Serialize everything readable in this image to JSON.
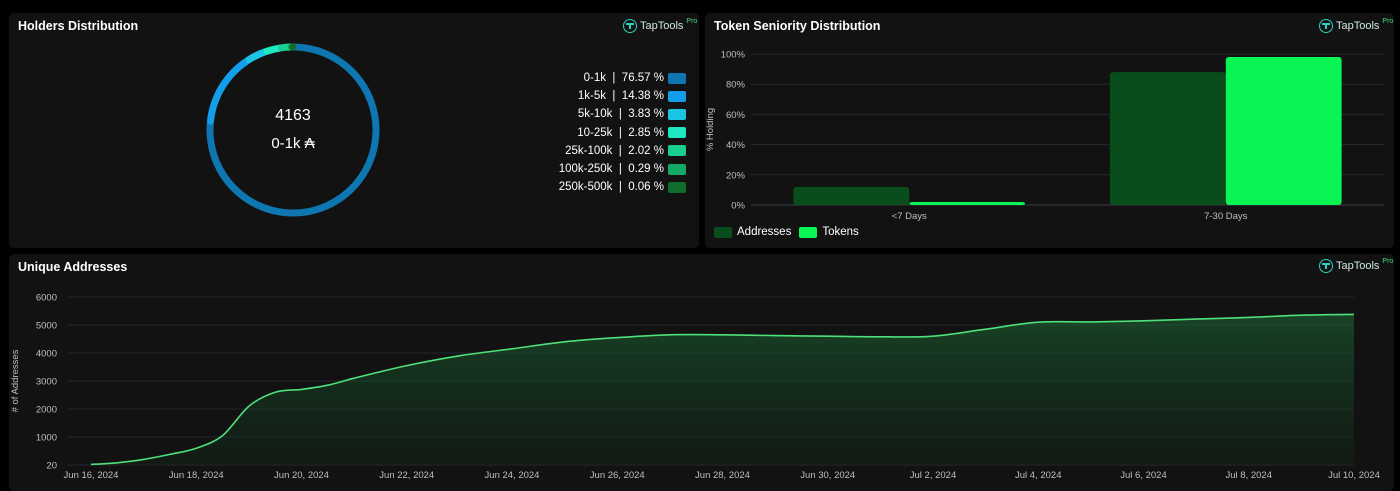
{
  "brand": {
    "name": "TapTools",
    "badge": "Pro"
  },
  "holders": {
    "title": "Holders Distribution",
    "center_value": "4163",
    "center_label": "0-1k ₳"
  },
  "seniority": {
    "title": "Token Seniority Distribution"
  },
  "unique": {
    "title": "Unique Addresses"
  },
  "chart_data": [
    {
      "type": "pie",
      "title": "Holders Distribution",
      "categories": [
        "0-1k",
        "1k-5k",
        "5k-10k",
        "10-25k",
        "25k-100k",
        "100k-250k",
        "250k-500k"
      ],
      "values": [
        76.57,
        14.38,
        3.83,
        2.85,
        2.02,
        0.29,
        0.06
      ],
      "value_labels": [
        "76.57 %",
        "14.38 %",
        "3.83 %",
        "2.85 %",
        "2.02 %",
        "0.29 %",
        "0.06 %"
      ],
      "colors": [
        "#0e76b0",
        "#129ee8",
        "#1cc4e4",
        "#1ee8c2",
        "#18cf8e",
        "#13a866",
        "#0f6e2c"
      ],
      "legend_position": "right"
    },
    {
      "type": "bar",
      "title": "Token Seniority Distribution",
      "categories": [
        "<7 Days",
        "7-30 Days"
      ],
      "series": [
        {
          "name": "Addresses",
          "values": [
            12,
            88
          ],
          "color": "#0a4d1c"
        },
        {
          "name": "Tokens",
          "values": [
            2,
            98
          ],
          "color": "#0af554"
        }
      ],
      "ylabel": "% Holding",
      "ylim": [
        0,
        100
      ],
      "yticks": [
        "0%",
        "20%",
        "40%",
        "60%",
        "80%",
        "100%"
      ],
      "legend_position": "bottom-left",
      "grid": true
    },
    {
      "type": "area",
      "title": "Unique Addresses",
      "ylabel": "# of Addresses",
      "ylim": [
        20,
        6000
      ],
      "yticks": [
        "20",
        "1000",
        "2000",
        "3000",
        "4000",
        "5000",
        "6000"
      ],
      "xticks": [
        "Jun 16, 2024",
        "Jun 18, 2024",
        "Jun 20, 2024",
        "Jun 22, 2024",
        "Jun 24, 2024",
        "Jun 26, 2024",
        "Jun 28, 2024",
        "Jun 30, 2024",
        "Jul 2, 2024",
        "Jul 4, 2024",
        "Jul 6, 2024",
        "Jul 8, 2024",
        "Jul 10, 2024"
      ],
      "x": [
        "2024-06-16",
        "2024-06-16T12",
        "2024-06-17",
        "2024-06-17T12",
        "2024-06-18",
        "2024-06-18T12",
        "2024-06-19",
        "2024-06-19T12",
        "2024-06-20",
        "2024-06-20T12",
        "2024-06-21",
        "2024-06-22",
        "2024-06-23",
        "2024-06-24",
        "2024-06-25",
        "2024-06-26",
        "2024-06-27",
        "2024-06-28",
        "2024-06-29",
        "2024-06-30",
        "2024-07-01",
        "2024-07-02",
        "2024-07-03",
        "2024-07-04",
        "2024-07-05",
        "2024-07-06",
        "2024-07-07",
        "2024-07-08",
        "2024-07-09",
        "2024-07-10"
      ],
      "y": [
        20,
        80,
        200,
        380,
        600,
        1050,
        2100,
        2600,
        2700,
        2850,
        3100,
        3550,
        3900,
        4150,
        4400,
        4550,
        4650,
        4650,
        4620,
        4600,
        4580,
        4600,
        4850,
        5100,
        5110,
        5150,
        5210,
        5270,
        5350,
        5380
      ],
      "color": "#4ee07a",
      "grid": true
    }
  ]
}
